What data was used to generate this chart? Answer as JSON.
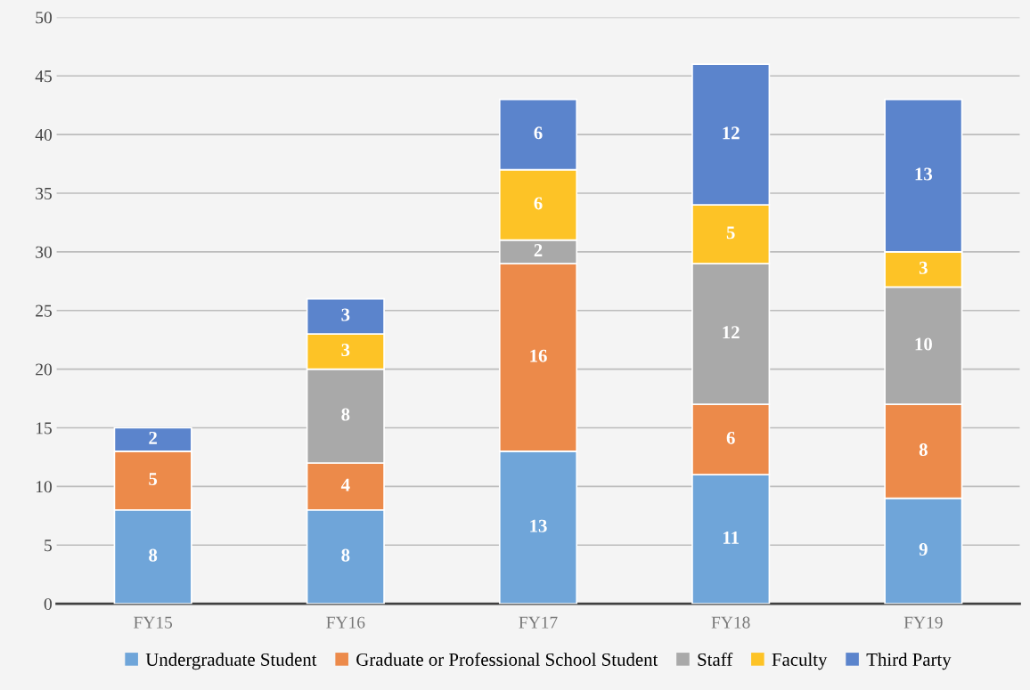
{
  "chart_data": {
    "type": "bar",
    "stacked": true,
    "categories": [
      "FY15",
      "FY16",
      "FY17",
      "FY18",
      "FY19"
    ],
    "series": [
      {
        "name": "Undergraduate Student",
        "color": "#6fa5d9",
        "values": [
          8,
          8,
          13,
          11,
          9
        ]
      },
      {
        "name": "Graduate or Professional School Student",
        "color": "#ec8a4a",
        "values": [
          5,
          4,
          16,
          6,
          8
        ]
      },
      {
        "name": "Staff",
        "color": "#a9a9a9",
        "values": [
          null,
          8,
          2,
          12,
          10
        ]
      },
      {
        "name": "Faculty",
        "color": "#fdc326",
        "values": [
          null,
          3,
          6,
          5,
          3
        ]
      },
      {
        "name": "Third Party",
        "color": "#5b84cc",
        "values": [
          2,
          3,
          6,
          12,
          13
        ]
      }
    ],
    "ylim": [
      0,
      50
    ],
    "yticks": [
      0,
      5,
      10,
      15,
      20,
      25,
      30,
      35,
      40,
      45,
      50
    ],
    "grid": "y",
    "legend": "bottom",
    "data_labels": true
  }
}
